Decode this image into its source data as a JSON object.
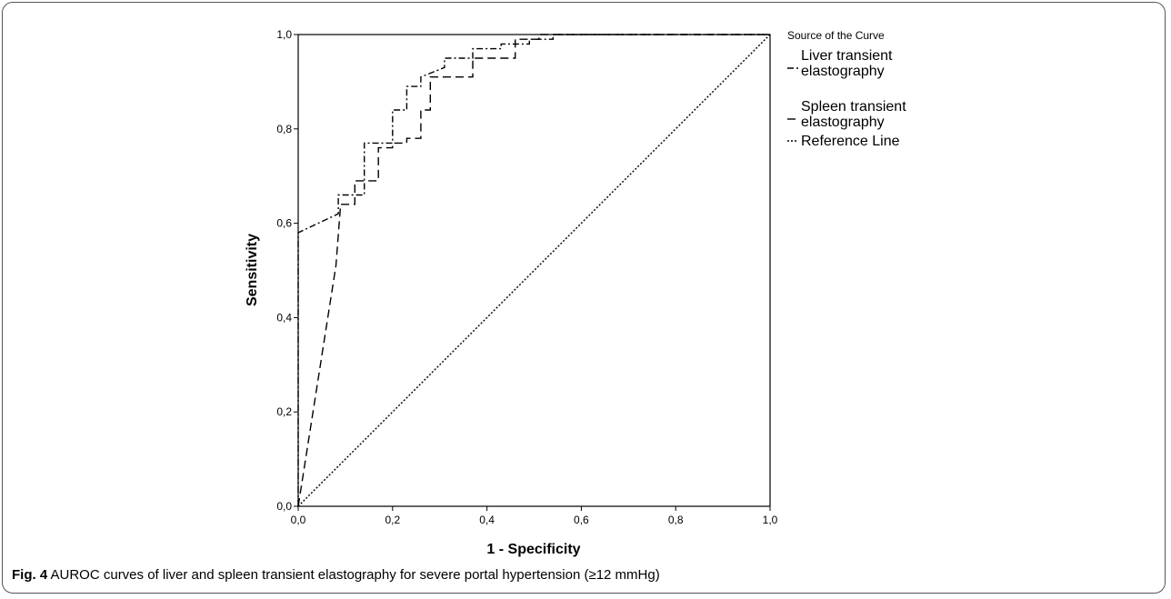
{
  "chart_data": {
    "type": "line",
    "xlabel": "1 - Specificity",
    "ylabel": "Sensitivity",
    "xlim": [
      0,
      1
    ],
    "ylim": [
      0,
      1
    ],
    "x_ticks": [
      "0,0",
      "0,2",
      "0,4",
      "0,6",
      "0,8",
      "1,0"
    ],
    "y_ticks": [
      "0,0",
      "0,2",
      "0,4",
      "0,6",
      "0,8",
      "1,0"
    ],
    "grid": false,
    "legend": {
      "title": "Source of the Curve",
      "placement": "right"
    },
    "series": [
      {
        "name": [
          "Liver transient",
          "elastography"
        ],
        "style": "dash-dot",
        "x": [
          0,
          0,
          0.085,
          0.085,
          0.14,
          0.14,
          0.2,
          0.2,
          0.23,
          0.23,
          0.26,
          0.26,
          0.31,
          0.31,
          0.37,
          0.37,
          0.43,
          0.43,
          0.49,
          0.49,
          0.54,
          0.54,
          1.0
        ],
        "y": [
          0,
          0.58,
          0.62,
          0.66,
          0.66,
          0.77,
          0.77,
          0.84,
          0.84,
          0.89,
          0.89,
          0.91,
          0.93,
          0.95,
          0.95,
          0.97,
          0.97,
          0.98,
          0.98,
          0.99,
          0.99,
          1.0,
          1.0
        ]
      },
      {
        "name": [
          "Spleen transient",
          "elastography"
        ],
        "style": "dash",
        "x": [
          0,
          0.08,
          0.09,
          0.09,
          0.12,
          0.12,
          0.17,
          0.17,
          0.2,
          0.2,
          0.23,
          0.23,
          0.26,
          0.26,
          0.28,
          0.28,
          0.37,
          0.37,
          0.46,
          0.46,
          0.51,
          0.51,
          1.0
        ],
        "y": [
          0,
          0.51,
          0.64,
          0.64,
          0.64,
          0.69,
          0.69,
          0.76,
          0.76,
          0.77,
          0.77,
          0.78,
          0.78,
          0.84,
          0.84,
          0.91,
          0.91,
          0.95,
          0.95,
          0.99,
          0.99,
          1.0,
          1.0
        ]
      },
      {
        "name": [
          "Reference Line"
        ],
        "style": "dot",
        "x": [
          0,
          1
        ],
        "y": [
          0,
          1
        ]
      }
    ]
  },
  "caption": {
    "label": "Fig. 4",
    "text": " AUROC curves of liver and spleen transient elastography for severe portal hypertension (≥12 mmHg)"
  }
}
